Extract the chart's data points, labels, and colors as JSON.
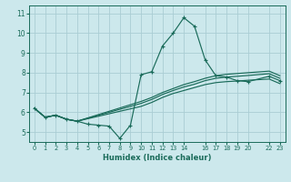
{
  "title": "",
  "xlabel": "Humidex (Indice chaleur)",
  "bg_color": "#cce8ec",
  "grid_color": "#aacdd4",
  "line_color": "#1a6b5a",
  "xlim": [
    -0.5,
    23.5
  ],
  "ylim": [
    4.5,
    11.4
  ],
  "xticks": [
    0,
    1,
    2,
    3,
    4,
    5,
    6,
    7,
    8,
    9,
    10,
    11,
    12,
    13,
    14,
    16,
    17,
    18,
    19,
    20,
    22,
    23
  ],
  "xtick_labels": [
    "0",
    "1",
    "2",
    "3",
    "4",
    "5",
    "6",
    "7",
    "8",
    "9",
    "10",
    "11",
    "12",
    "13",
    "14",
    "16",
    "17",
    "18",
    "19",
    "20",
    "22",
    "23"
  ],
  "yticks": [
    5,
    6,
    7,
    8,
    9,
    10,
    11
  ],
  "line_with_markers": {
    "x": [
      0,
      1,
      2,
      3,
      4,
      5,
      6,
      7,
      8,
      9,
      10,
      11,
      12,
      13,
      14,
      15,
      16,
      17,
      18,
      19,
      20,
      22,
      23
    ],
    "y": [
      6.2,
      5.75,
      5.85,
      5.65,
      5.55,
      5.4,
      5.35,
      5.3,
      4.68,
      5.35,
      7.9,
      8.05,
      9.35,
      10.0,
      10.78,
      10.35,
      8.65,
      7.85,
      7.78,
      7.6,
      7.55,
      7.82,
      7.6
    ]
  },
  "smooth_lines": [
    {
      "x": [
        0,
        1,
        2,
        3,
        4,
        10,
        11,
        12,
        13,
        14,
        15,
        16,
        17,
        18,
        19,
        20,
        22,
        23
      ],
      "y": [
        6.2,
        5.75,
        5.85,
        5.65,
        5.55,
        6.3,
        6.5,
        6.75,
        6.95,
        7.1,
        7.25,
        7.4,
        7.5,
        7.55,
        7.58,
        7.62,
        7.68,
        7.45
      ]
    },
    {
      "x": [
        0,
        1,
        2,
        3,
        4,
        10,
        11,
        12,
        13,
        14,
        15,
        16,
        17,
        18,
        19,
        20,
        22,
        23
      ],
      "y": [
        6.2,
        5.75,
        5.85,
        5.65,
        5.55,
        6.45,
        6.65,
        6.9,
        7.1,
        7.28,
        7.42,
        7.6,
        7.72,
        7.78,
        7.82,
        7.86,
        7.95,
        7.72
      ]
    },
    {
      "x": [
        0,
        1,
        2,
        3,
        4,
        10,
        11,
        12,
        13,
        14,
        15,
        16,
        17,
        18,
        19,
        20,
        22,
        23
      ],
      "y": [
        6.2,
        5.75,
        5.85,
        5.65,
        5.55,
        6.55,
        6.75,
        7.0,
        7.2,
        7.4,
        7.55,
        7.72,
        7.85,
        7.92,
        7.96,
        8.0,
        8.08,
        7.85
      ]
    }
  ]
}
